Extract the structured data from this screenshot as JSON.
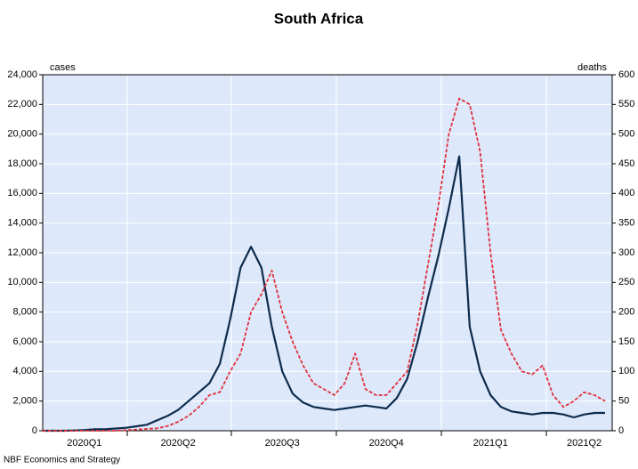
{
  "chart_data": {
    "type": "line",
    "title": "South Africa",
    "y_label": "cases",
    "y2_label": "deaths",
    "source": "NBF Economics and Strategy",
    "x": [
      null,
      null,
      null,
      null,
      "2020Q1",
      null,
      null,
      null,
      null,
      null,
      null,
      null,
      null,
      "2020Q2",
      null,
      null,
      null,
      null,
      null,
      null,
      null,
      null,
      null,
      "2020Q3",
      null,
      null,
      null,
      null,
      null,
      null,
      null,
      null,
      null,
      "2020Q4",
      null,
      null,
      null,
      null,
      null,
      null,
      null,
      null,
      null,
      "2021Q1",
      null,
      null,
      null,
      null,
      null,
      null,
      null,
      null,
      "2021Q2",
      null,
      null
    ],
    "series": [
      {
        "name": "cases",
        "color": "#0d2b4c",
        "axis": "y",
        "values": [
          0,
          0,
          0,
          20,
          50,
          100,
          100,
          150,
          200,
          300,
          400,
          700,
          1000,
          1400,
          2000,
          2600,
          3200,
          4500,
          7500,
          11000,
          12400,
          11000,
          7000,
          4000,
          2500,
          1900,
          1600,
          1500,
          1400,
          1500,
          1600,
          1700,
          1600,
          1500,
          2200,
          3500,
          6000,
          9000,
          11800,
          15000,
          18500,
          7000,
          4000,
          2400,
          1600,
          1300,
          1200,
          1100,
          1200,
          1200,
          1100,
          900,
          1100,
          1200,
          1200
        ]
      },
      {
        "name": "deaths",
        "color": "#e0303c",
        "axis": "y2",
        "values": [
          0,
          0,
          0,
          0,
          0,
          0,
          0,
          0,
          1,
          2,
          3,
          4,
          8,
          15,
          25,
          40,
          60,
          65,
          100,
          130,
          200,
          230,
          270,
          200,
          150,
          110,
          80,
          70,
          60,
          80,
          130,
          70,
          60,
          60,
          80,
          100,
          180,
          280,
          380,
          500,
          560,
          550,
          470,
          300,
          170,
          130,
          100,
          95,
          110,
          60,
          40,
          50,
          65,
          60,
          50
        ]
      }
    ],
    "ylim": [
      0,
      24000
    ],
    "yticks": [
      0,
      {
        "value": 2000,
        "label": "2,000"
      },
      {
        "value": 4000,
        "label": "4,000"
      },
      {
        "value": 6000,
        "label": "6,000"
      },
      {
        "value": 8000,
        "label": "8,000"
      },
      {
        "value": 10000,
        "label": "10,000"
      },
      {
        "value": 12000,
        "label": "12,000"
      },
      {
        "value": 14000,
        "label": "14,000"
      },
      {
        "value": 16000,
        "label": "16,000"
      },
      {
        "value": 18000,
        "label": "18,000"
      },
      {
        "value": 20000,
        "label": "20,000"
      },
      {
        "value": 22000,
        "label": "22,000"
      },
      {
        "value": 24000,
        "label": "24,000"
      }
    ],
    "y2lim": [
      0,
      600
    ],
    "y2ticks": [
      0,
      50,
      100,
      150,
      200,
      250,
      300,
      350,
      400,
      450,
      500,
      550,
      600
    ],
    "grid": true
  }
}
